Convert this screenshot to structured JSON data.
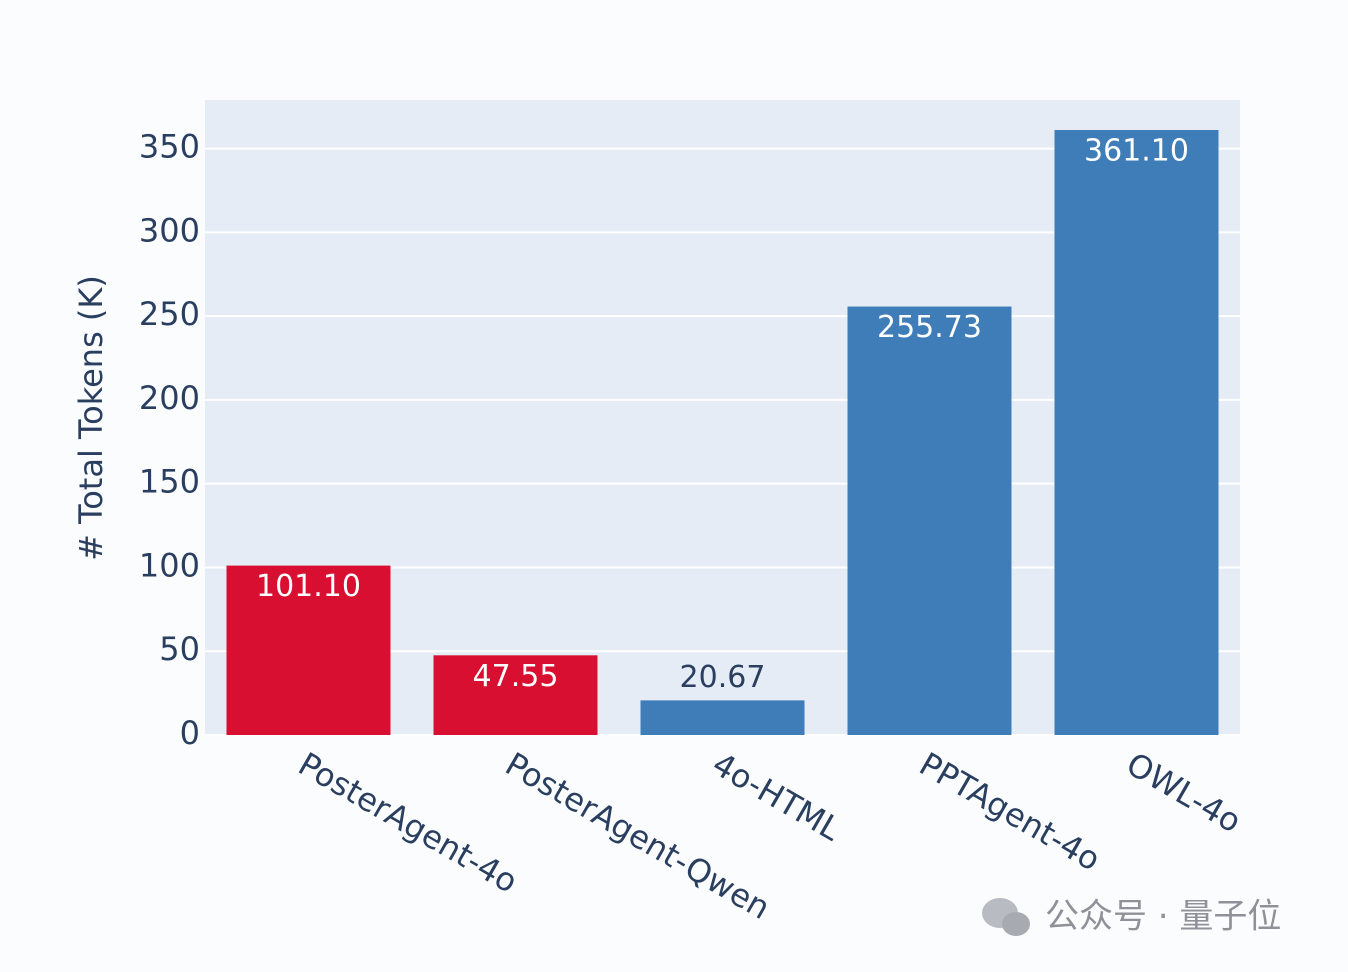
{
  "chart_data": {
    "type": "bar",
    "y_label": "# Total Tokens (K)",
    "categories": [
      "PosterAgent-4o",
      "PosterAgent-Qwen",
      "4o-HTML",
      "PPTAgent-4o",
      "OWL-4o"
    ],
    "values": [
      101.1,
      47.55,
      20.67,
      255.73,
      361.1
    ],
    "value_labels": [
      "101.10",
      "47.55",
      "20.67",
      "255.73",
      "361.10"
    ],
    "colors": [
      "#d80f30",
      "#d80f30",
      "#3f7db8",
      "#3f7db8",
      "#3f7db8"
    ],
    "ylim": [
      0,
      379
    ],
    "yticks": [
      0,
      50,
      100,
      150,
      200,
      250,
      300,
      350
    ],
    "grid": true,
    "watermark": "公众号 · 量子位"
  }
}
